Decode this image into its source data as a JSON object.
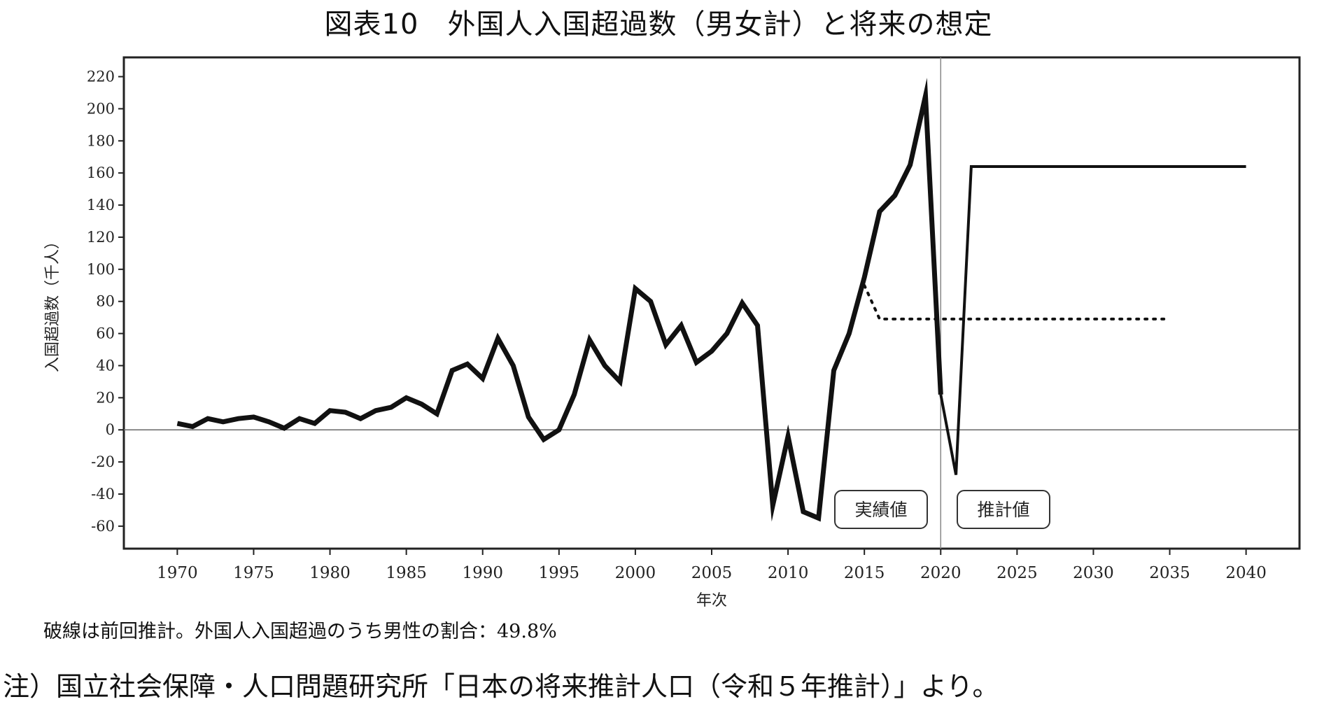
{
  "figure": {
    "title": "図表10　外国人入国超過数（男女計）と将来の想定",
    "dashed_note": "破線は前回推計。外国人入国超過のうち男性の割合：49.8%",
    "source_note": "注）国立社会保障・人口問題研究所「日本の将来推計人口（令和５年推計）」より。"
  },
  "chart_data": {
    "type": "line",
    "title": "図表10　外国人入国超過数（男女計）と将来の想定",
    "xlabel": "年次",
    "ylabel": "入国超過数（千人）",
    "xlim": [
      1966.5,
      2043.5
    ],
    "ylim": [
      -74,
      232
    ],
    "xticks": [
      1970,
      1975,
      1980,
      1985,
      1990,
      1995,
      2000,
      2005,
      2010,
      2015,
      2020,
      2025,
      2030,
      2035,
      2040
    ],
    "yticks": [
      -60,
      -40,
      -20,
      0,
      20,
      40,
      60,
      80,
      100,
      120,
      140,
      160,
      180,
      200,
      220
    ],
    "divider_year": 2020,
    "annotations": [
      "実績値",
      "推計値"
    ],
    "grid": false,
    "series": [
      {
        "style": "solid-thick",
        "color": "#111111",
        "x": [
          1970,
          1971,
          1972,
          1973,
          1974,
          1975,
          1976,
          1977,
          1978,
          1979,
          1980,
          1981,
          1982,
          1983,
          1984,
          1985,
          1986,
          1987,
          1988,
          1989,
          1990,
          1991,
          1992,
          1993,
          1994,
          1995,
          1996,
          1997,
          1998,
          1999,
          2000,
          2001,
          2002,
          2003,
          2004,
          2005,
          2006,
          2007,
          2008,
          2009,
          2010,
          2011,
          2012,
          2013,
          2014,
          2015,
          2016,
          2017,
          2018,
          2019,
          2020
        ],
        "y": [
          4,
          2,
          7,
          5,
          7,
          8,
          5,
          1,
          7,
          4,
          12,
          11,
          7,
          12,
          14,
          20,
          16,
          10,
          37,
          41,
          32,
          57,
          40,
          8,
          -6,
          0,
          22,
          56,
          40,
          30,
          88,
          80,
          53,
          65,
          42,
          49,
          60,
          79,
          65,
          -47,
          -4,
          -51,
          -55,
          37,
          60,
          95,
          136,
          146,
          165,
          208,
          22
        ]
      },
      {
        "style": "solid-thin",
        "color": "#111111",
        "x": [
          2020,
          2021,
          2022,
          2023,
          2024,
          2025,
          2026,
          2027,
          2028,
          2029,
          2030,
          2031,
          2032,
          2033,
          2034,
          2035,
          2036,
          2037,
          2038,
          2039,
          2040
        ],
        "y": [
          22,
          -28,
          164,
          164,
          164,
          164,
          164,
          164,
          164,
          164,
          164,
          164,
          164,
          164,
          164,
          164,
          164,
          164,
          164,
          164,
          164
        ]
      },
      {
        "style": "dotted",
        "color": "#111111",
        "x": [
          2015,
          2016,
          2017,
          2018,
          2019,
          2020,
          2021,
          2022,
          2023,
          2024,
          2025,
          2026,
          2027,
          2028,
          2029,
          2030,
          2031,
          2032,
          2033,
          2034,
          2035
        ],
        "y": [
          90,
          69,
          69,
          69,
          69,
          69,
          69,
          69,
          69,
          69,
          69,
          69,
          69,
          69,
          69,
          69,
          69,
          69,
          69,
          69,
          69
        ]
      }
    ]
  }
}
